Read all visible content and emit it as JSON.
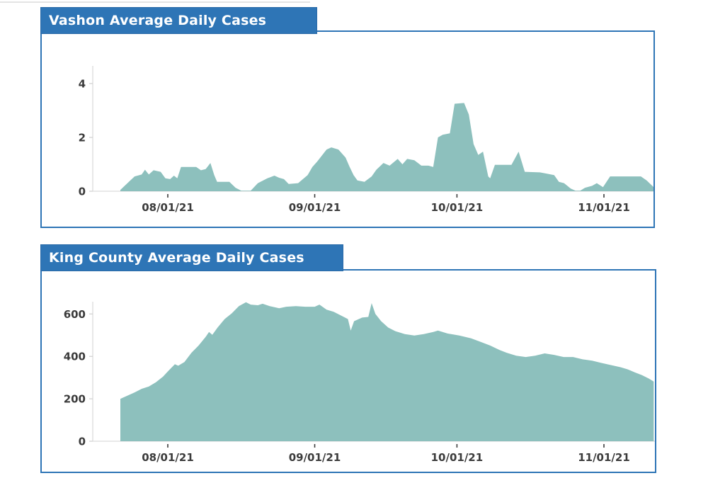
{
  "colors": {
    "accent_blue": "#2e75b6",
    "area_fill": "#8dc0bd",
    "axis_gray": "#dcdcdc",
    "label_gray": "#3b3b3b"
  },
  "chart_data": [
    {
      "type": "area",
      "title": "Vashon Average Daily Cases",
      "fill_color": "#8dc0bd",
      "x_unit": "days (day 0 = ~07/22/21)",
      "x_ticks": [
        {
          "day": 10,
          "label": "08/01/21"
        },
        {
          "day": 41,
          "label": "09/01/21"
        },
        {
          "day": 71,
          "label": "10/01/21"
        },
        {
          "day": 102,
          "label": "11/01/21"
        }
      ],
      "y_ticks": [
        0,
        2,
        4
      ],
      "ylim": [
        0,
        4.7
      ],
      "legend": "none",
      "grid": "off",
      "points": [
        [
          0,
          0.05
        ],
        [
          1.5,
          0.3
        ],
        [
          3,
          0.55
        ],
        [
          4.5,
          0.62
        ],
        [
          5.2,
          0.8
        ],
        [
          6,
          0.62
        ],
        [
          7,
          0.78
        ],
        [
          8.5,
          0.72
        ],
        [
          9.5,
          0.48
        ],
        [
          10.5,
          0.45
        ],
        [
          11.3,
          0.58
        ],
        [
          12,
          0.48
        ],
        [
          12.8,
          0.9
        ],
        [
          16,
          0.9
        ],
        [
          17,
          0.78
        ],
        [
          18,
          0.82
        ],
        [
          19,
          1.05
        ],
        [
          19.8,
          0.6
        ],
        [
          20.4,
          0.35
        ],
        [
          23,
          0.35
        ],
        [
          24.3,
          0.13
        ],
        [
          25.5,
          0.02
        ],
        [
          27.5,
          0.02
        ],
        [
          29,
          0.3
        ],
        [
          31,
          0.48
        ],
        [
          32.5,
          0.58
        ],
        [
          33.5,
          0.5
        ],
        [
          34.5,
          0.45
        ],
        [
          35.5,
          0.27
        ],
        [
          37.5,
          0.3
        ],
        [
          39.5,
          0.6
        ],
        [
          40.5,
          0.9
        ],
        [
          41.5,
          1.1
        ],
        [
          43.5,
          1.55
        ],
        [
          44.5,
          1.63
        ],
        [
          46,
          1.55
        ],
        [
          47.5,
          1.25
        ],
        [
          48.3,
          0.93
        ],
        [
          49.2,
          0.6
        ],
        [
          50,
          0.4
        ],
        [
          51.5,
          0.35
        ],
        [
          53,
          0.55
        ],
        [
          54,
          0.8
        ],
        [
          55.5,
          1.05
        ],
        [
          56.8,
          0.95
        ],
        [
          58.5,
          1.2
        ],
        [
          59.5,
          1.0
        ],
        [
          60.5,
          1.2
        ],
        [
          62,
          1.15
        ],
        [
          63.5,
          0.95
        ],
        [
          65,
          0.95
        ],
        [
          66,
          0.9
        ],
        [
          67,
          2.0
        ],
        [
          68,
          2.1
        ],
        [
          69.5,
          2.15
        ],
        [
          70.5,
          3.25
        ],
        [
          72.5,
          3.28
        ],
        [
          73.5,
          2.85
        ],
        [
          74.5,
          1.75
        ],
        [
          75.5,
          1.35
        ],
        [
          76.5,
          1.47
        ],
        [
          77.6,
          0.55
        ],
        [
          78,
          0.48
        ],
        [
          79,
          0.98
        ],
        [
          82.5,
          0.98
        ],
        [
          84,
          1.47
        ],
        [
          85.3,
          0.72
        ],
        [
          88.5,
          0.7
        ],
        [
          90,
          0.65
        ],
        [
          91.5,
          0.6
        ],
        [
          92.5,
          0.35
        ],
        [
          93.6,
          0.3
        ],
        [
          95,
          0.1
        ],
        [
          96,
          0.02
        ],
        [
          97,
          0.02
        ],
        [
          98,
          0.13
        ],
        [
          99.5,
          0.2
        ],
        [
          100.5,
          0.3
        ],
        [
          101.8,
          0.15
        ],
        [
          103.3,
          0.55
        ],
        [
          109.8,
          0.55
        ],
        [
          111,
          0.4
        ],
        [
          112.5,
          0.15
        ]
      ]
    },
    {
      "type": "area",
      "title": "King County Average Daily Cases",
      "fill_color": "#8dc0bd",
      "x_unit": "days (day 0 = ~07/22/21)",
      "x_ticks": [
        {
          "day": 10,
          "label": "08/01/21"
        },
        {
          "day": 41,
          "label": "09/01/21"
        },
        {
          "day": 71,
          "label": "10/01/21"
        },
        {
          "day": 102,
          "label": "11/01/21"
        }
      ],
      "y_ticks": [
        0,
        200,
        400,
        600
      ],
      "ylim": [
        0,
        680
      ],
      "legend": "none",
      "grid": "off",
      "points": [
        [
          0,
          200
        ],
        [
          3,
          230
        ],
        [
          4.5,
          247
        ],
        [
          6,
          258
        ],
        [
          7.5,
          278
        ],
        [
          9,
          305
        ],
        [
          10,
          329
        ],
        [
          11.5,
          363
        ],
        [
          12.2,
          356
        ],
        [
          13.5,
          373
        ],
        [
          15,
          417
        ],
        [
          16.5,
          451
        ],
        [
          18,
          492
        ],
        [
          18.7,
          515
        ],
        [
          19.4,
          502
        ],
        [
          20.5,
          536
        ],
        [
          22,
          576
        ],
        [
          23.5,
          603
        ],
        [
          25,
          637
        ],
        [
          26.5,
          655
        ],
        [
          27.5,
          644
        ],
        [
          29,
          641
        ],
        [
          30,
          648
        ],
        [
          31.5,
          637
        ],
        [
          33.5,
          627
        ],
        [
          35,
          634
        ],
        [
          37,
          637
        ],
        [
          39,
          634
        ],
        [
          41,
          634
        ],
        [
          42,
          644
        ],
        [
          43.5,
          620
        ],
        [
          45,
          610
        ],
        [
          46.5,
          593
        ],
        [
          48,
          576
        ],
        [
          48.6,
          522
        ],
        [
          49.3,
          566
        ],
        [
          51,
          583
        ],
        [
          52.3,
          586
        ],
        [
          53,
          651
        ],
        [
          53.8,
          600
        ],
        [
          55,
          566
        ],
        [
          56.5,
          536
        ],
        [
          58,
          519
        ],
        [
          60,
          505
        ],
        [
          62,
          498
        ],
        [
          64,
          505
        ],
        [
          66,
          515
        ],
        [
          67,
          522
        ],
        [
          69,
          508
        ],
        [
          71.5,
          498
        ],
        [
          74,
          485
        ],
        [
          76,
          468
        ],
        [
          78,
          451
        ],
        [
          80,
          430
        ],
        [
          81.5,
          417
        ],
        [
          83.5,
          403
        ],
        [
          85.5,
          397
        ],
        [
          87.5,
          403
        ],
        [
          89.5,
          414
        ],
        [
          91.5,
          407
        ],
        [
          93.5,
          397
        ],
        [
          95.5,
          397
        ],
        [
          97.5,
          386
        ],
        [
          99.5,
          380
        ],
        [
          101.5,
          369
        ],
        [
          103.5,
          359
        ],
        [
          105.5,
          349
        ],
        [
          107,
          339
        ],
        [
          108.5,
          325
        ],
        [
          110,
          312
        ],
        [
          111.5,
          295
        ],
        [
          112.5,
          281
        ]
      ]
    }
  ]
}
